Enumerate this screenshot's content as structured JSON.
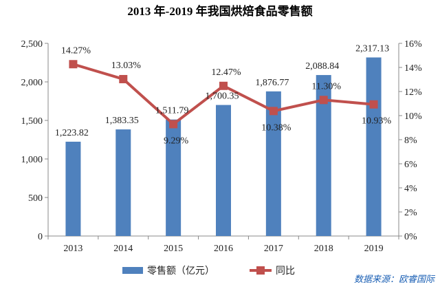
{
  "chart_data": {
    "type": "bar+line",
    "title": "2013 年-2019 年我国烘焙食品零售额",
    "categories": [
      "2013",
      "2014",
      "2015",
      "2016",
      "2017",
      "2018",
      "2019"
    ],
    "series": [
      {
        "name": "零售额（亿元）",
        "type": "bar",
        "axis": "left",
        "values": [
          1223.82,
          1383.35,
          1511.79,
          1700.35,
          1876.77,
          2088.84,
          2317.13
        ],
        "labels": [
          "1,223.82",
          "1,383.35",
          "1,511.79",
          "1,700.35",
          "1,876.77",
          "2,088.84",
          "2,317.13"
        ]
      },
      {
        "name": "同比",
        "type": "line",
        "axis": "right",
        "values": [
          14.27,
          13.03,
          9.29,
          12.47,
          10.38,
          11.3,
          10.93
        ],
        "labels": [
          "14.27%",
          "13.03%",
          "9.29%",
          "12.47%",
          "10.38%",
          "11.30%",
          "10.93%"
        ]
      }
    ],
    "y_left": {
      "ylim": [
        0,
        2500
      ],
      "ticks": [
        "0",
        "500",
        "1,000",
        "1,500",
        "2,000",
        "2,500"
      ]
    },
    "y_right": {
      "ylim": [
        0,
        16
      ],
      "ticks": [
        "0%",
        "2%",
        "4%",
        "6%",
        "8%",
        "10%",
        "12%",
        "14%",
        "16%"
      ]
    },
    "grid": false,
    "legend_position": "bottom",
    "source_note": "数据来源：欧睿国际",
    "colors": {
      "bar": "#4f81bd",
      "line": "#c0504d",
      "axis": "#888888",
      "source": "#1a5fb4"
    }
  }
}
